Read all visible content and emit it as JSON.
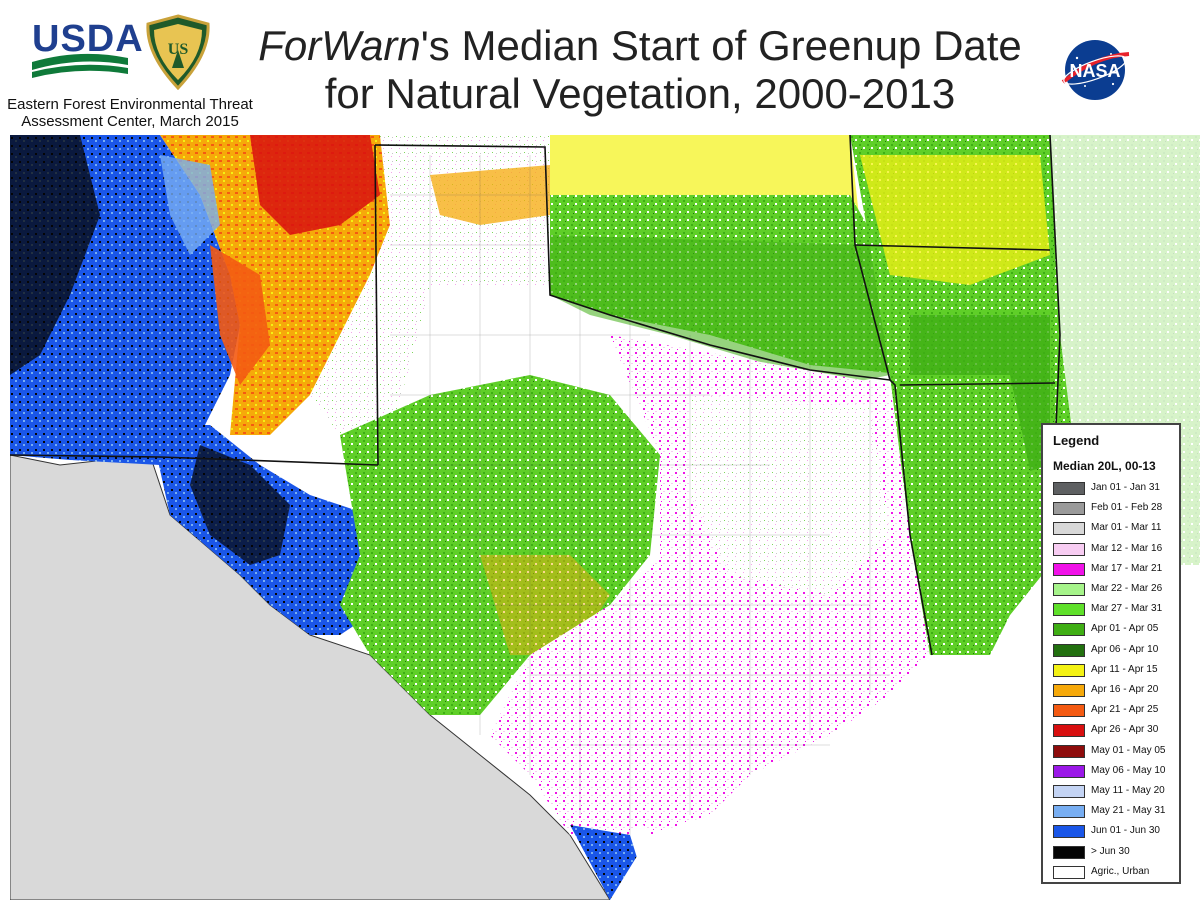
{
  "header": {
    "usda_label": "USDA",
    "org_line1": "Eastern Forest Environmental Threat",
    "org_line2": "Assessment Center, March 2015",
    "title_italic": "ForWarn",
    "title_rest_line1": "'s Median Start of Greenup Date",
    "title_line2": "for Natural Vegetation, 2000-2013",
    "nasa_label": "NASA",
    "fs_logo_icon": "forest-service-shield-icon",
    "usda_logo_icon": "usda-logo-icon"
  },
  "legend": {
    "title": "Legend",
    "subtitle": "Median 20L, 00-13",
    "items": [
      {
        "label": "Jan 01 - Jan 31",
        "color": "#5e6062"
      },
      {
        "label": "Feb 01 - Feb 28",
        "color": "#9a9a9a"
      },
      {
        "label": "Mar 01 - Mar 11",
        "color": "#d8d8d8"
      },
      {
        "label": "Mar 12 - Mar 16",
        "color": "#f7ccf2"
      },
      {
        "label": "Mar 17 - Mar 21",
        "color": "#f012e8"
      },
      {
        "label": "Mar 22 - Mar 26",
        "color": "#a6f48a"
      },
      {
        "label": "Mar 27 - Mar 31",
        "color": "#5fe02a"
      },
      {
        "label": "Apr 01  - Apr 05",
        "color": "#3fae14"
      },
      {
        "label": "Apr 06 - Apr 10",
        "color": "#22700f"
      },
      {
        "label": "Apr 11 - Apr 15",
        "color": "#f4f214"
      },
      {
        "label": "Apr 16 - Apr 20",
        "color": "#f6a90a"
      },
      {
        "label": "Apr 21 - Apr 25",
        "color": "#f45a12"
      },
      {
        "label": "Apr 26 - Apr 30",
        "color": "#d80f0f"
      },
      {
        "label": "May 01 - May 05",
        "color": "#8e0c0c"
      },
      {
        "label": "May 06 - May 10",
        "color": "#9b18e8"
      },
      {
        "label": "May 11 - May 20",
        "color": "#c4d4f4"
      },
      {
        "label": "May 21 - May 31",
        "color": "#78aef2"
      },
      {
        "label": "Jun 01 - Jun 30",
        "color": "#1a56e8"
      },
      {
        "label": "> Jun 30",
        "color": "#050505"
      },
      {
        "label": "Agric., Urban",
        "color": "#ffffff"
      }
    ]
  },
  "map": {
    "region": "Texas and surrounding states",
    "no_data_color": "#d9d9d9",
    "background_color": "#ffffff",
    "gulf_color": "#ffffff"
  }
}
